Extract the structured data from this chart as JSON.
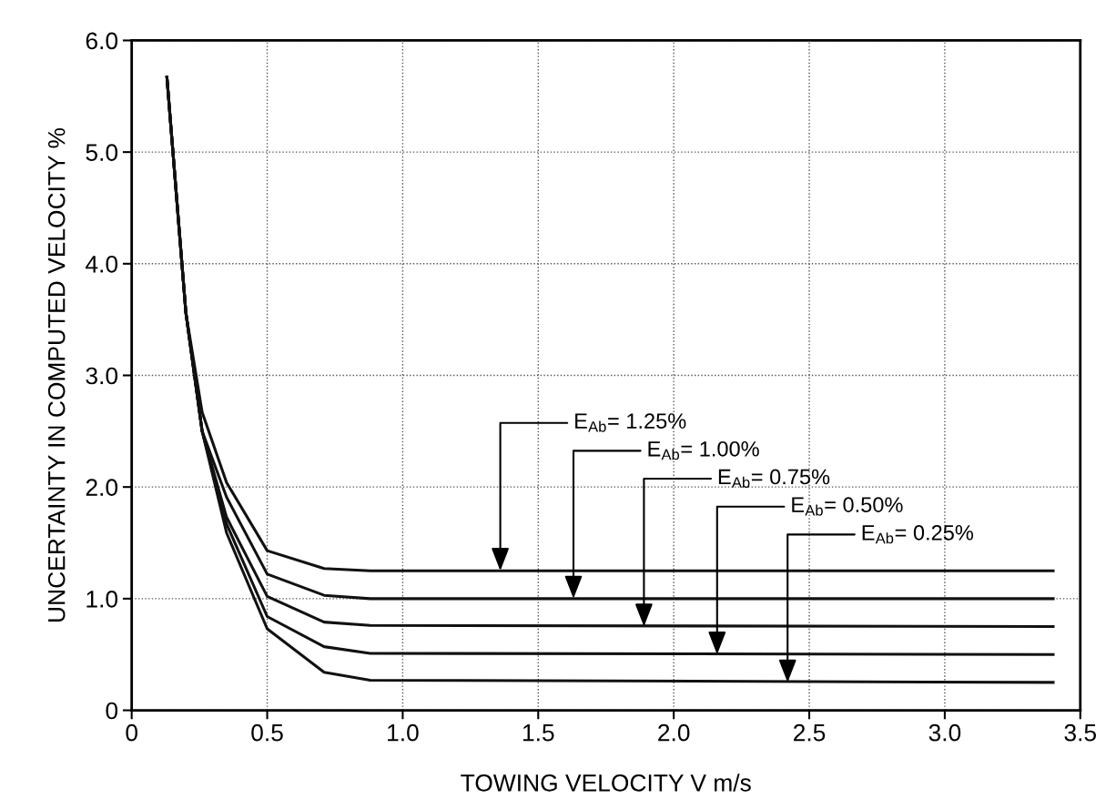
{
  "chart_data": {
    "type": "line",
    "xlabel": "TOWING VELOCITY V m/s",
    "ylabel": "UNCERTAINTY IN COMPUTED VELOCITY %",
    "x": [
      0.13,
      0.2,
      0.26,
      0.35,
      0.5,
      0.71,
      0.88,
      3.4
    ],
    "series": [
      {
        "color": "#111111",
        "values": [
          5.67,
          3.56,
          2.67,
          2.04,
          1.43,
          1.27,
          1.25,
          1.25
        ]
      },
      {
        "color": "#111111",
        "values": [
          5.67,
          3.56,
          2.5,
          1.91,
          1.22,
          1.03,
          1.0,
          1.0
        ]
      },
      {
        "color": "#111111",
        "values": [
          5.67,
          3.56,
          2.5,
          1.73,
          1.02,
          0.79,
          0.76,
          0.75
        ]
      },
      {
        "color": "#111111",
        "values": [
          5.67,
          3.56,
          2.5,
          1.67,
          0.84,
          0.57,
          0.51,
          0.5
        ]
      },
      {
        "color": "#111111",
        "values": [
          5.67,
          3.56,
          2.5,
          1.59,
          0.73,
          0.34,
          0.27,
          0.25
        ]
      }
    ],
    "annotations": [
      {
        "text": "E$_{Ab}$= 1.25%",
        "x": 1.36,
        "y": 1.25
      },
      {
        "text": "E$_{Ab}$= 1.00%",
        "x": 1.63,
        "y": 1.0
      },
      {
        "text": "E$_{Ab}$= 0.75%",
        "x": 1.89,
        "y": 0.75
      },
      {
        "text": "E$_{Ab}$= 0.50%",
        "x": 2.16,
        "y": 0.5
      },
      {
        "text": "E$_{Ab}$= 0.25%",
        "x": 2.42,
        "y": 0.25
      }
    ],
    "xlim": [
      0,
      3.5
    ],
    "ylim": [
      0,
      6.0
    ],
    "xticks": [
      0,
      0.5,
      {
        "value": 1.0,
        "label": "1.0"
      },
      1.5,
      {
        "value": 2.0,
        "label": "2.0"
      },
      2.5,
      {
        "value": 3.0,
        "label": "3.0"
      },
      3.5
    ],
    "yticks": [
      0,
      {
        "value": 1.0,
        "label": "1.0"
      },
      {
        "value": 2.0,
        "label": "2.0"
      },
      {
        "value": 3.0,
        "label": "3.0"
      },
      {
        "value": 4.0,
        "label": "4.0"
      },
      {
        "value": 5.0,
        "label": "5.0"
      },
      {
        "value": 6.0,
        "label": "6.0"
      }
    ],
    "grid": true,
    "line_style": "solid",
    "marker": "none"
  }
}
